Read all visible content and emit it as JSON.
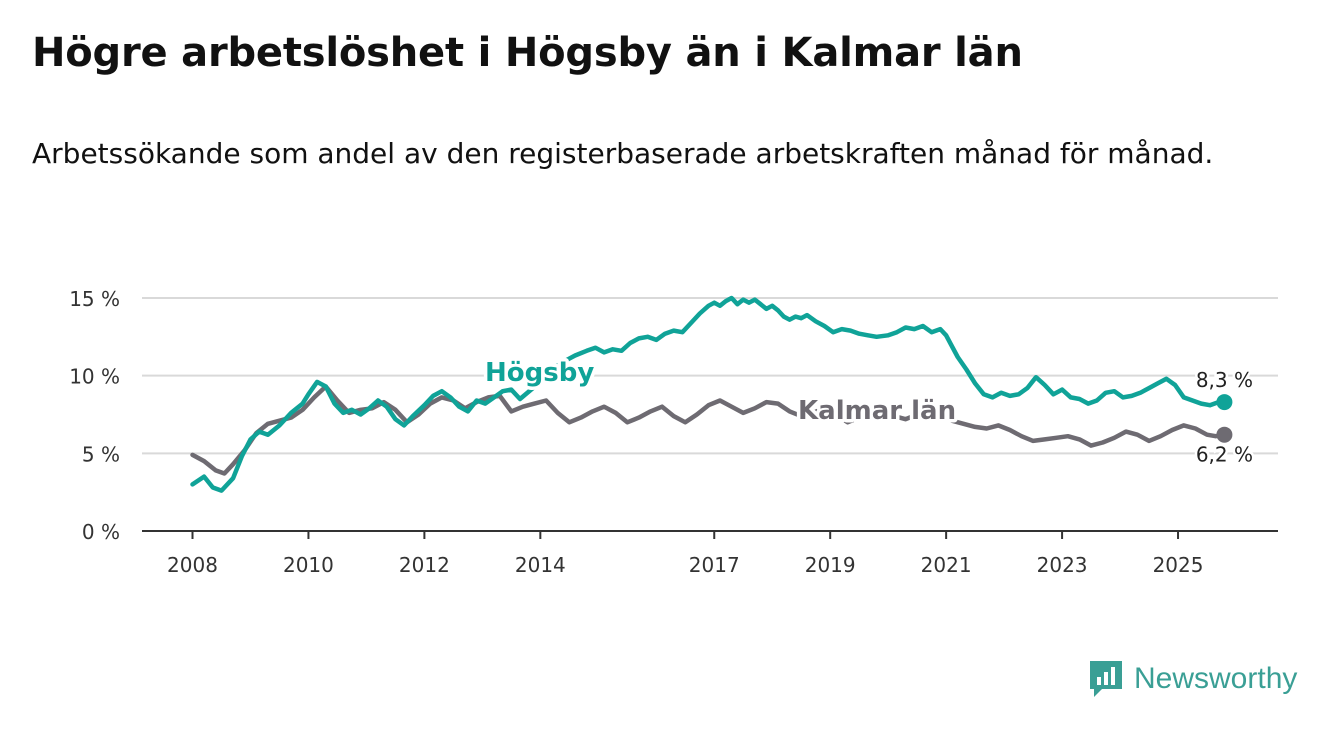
{
  "title": "Högre arbetslöshet i Högsby än i Kalmar län",
  "subtitle": "Arbetssökande som andel av den registerbaserade arbetskraften månad för månad.",
  "brand": {
    "name": "Newsworthy",
    "icon": "bar-chart-logo-icon",
    "color": "#3a9f95"
  },
  "chart_data": {
    "type": "line",
    "title": "Högre arbetslöshet i Högsby än i Kalmar län",
    "xlabel": "",
    "ylabel": "",
    "ylim": [
      0,
      15
    ],
    "xlim": [
      2008,
      2026
    ],
    "grid": true,
    "y_ticks": [
      0,
      5,
      10,
      15
    ],
    "y_tick_labels": [
      "0 %",
      "5 %",
      "10 %",
      "15 %"
    ],
    "x_ticks": [
      2008,
      2010,
      2012,
      2014,
      2017,
      2019,
      2021,
      2023,
      2025
    ],
    "x_tick_labels": [
      "2008",
      "2010",
      "2012",
      "2014",
      "2017",
      "2019",
      "2021",
      "2023",
      "2025"
    ],
    "series": [
      {
        "name": "Högsby",
        "color": "#10a398",
        "end_label": "8,3 %",
        "x": [
          2008,
          2008.2,
          2008.35,
          2008.5,
          2008.7,
          2008.85,
          2009,
          2009.15,
          2009.3,
          2009.5,
          2009.7,
          2009.9,
          2010,
          2010.15,
          2010.3,
          2010.45,
          2010.6,
          2010.75,
          2010.9,
          2011.05,
          2011.2,
          2011.35,
          2011.5,
          2011.65,
          2011.8,
          2012,
          2012.15,
          2012.3,
          2012.45,
          2012.6,
          2012.75,
          2012.9,
          2013.05,
          2013.2,
          2013.35,
          2013.5,
          2013.65,
          2014,
          2014.2,
          2014.4,
          2014.6,
          2014.8,
          2014.95,
          2015.1,
          2015.25,
          2015.4,
          2015.55,
          2015.7,
          2015.85,
          2016,
          2016.15,
          2016.3,
          2016.45,
          2016.6,
          2016.75,
          2016.9,
          2017,
          2017.1,
          2017.2,
          2017.3,
          2017.4,
          2017.5,
          2017.6,
          2017.7,
          2017.8,
          2017.9,
          2018,
          2018.1,
          2018.2,
          2018.3,
          2018.4,
          2018.5,
          2018.6,
          2018.75,
          2018.9,
          2019.05,
          2019.2,
          2019.35,
          2019.5,
          2019.65,
          2019.8,
          2020,
          2020.15,
          2020.3,
          2020.45,
          2020.6,
          2020.75,
          2020.9,
          2021,
          2021.1,
          2021.2,
          2021.35,
          2021.5,
          2021.65,
          2021.8,
          2021.95,
          2022.1,
          2022.25,
          2022.4,
          2022.55,
          2022.7,
          2022.85,
          2023,
          2023.15,
          2023.3,
          2023.45,
          2023.6,
          2023.75,
          2023.9,
          2024.05,
          2024.2,
          2024.35,
          2024.5,
          2024.65,
          2024.8,
          2024.95,
          2025.1,
          2025.25,
          2025.4,
          2025.55,
          2025.7,
          2025.8
        ],
        "values": [
          3.0,
          3.5,
          2.8,
          2.6,
          3.4,
          4.8,
          5.9,
          6.4,
          6.2,
          6.8,
          7.6,
          8.2,
          8.8,
          9.6,
          9.3,
          8.2,
          7.6,
          7.8,
          7.5,
          7.9,
          8.4,
          8.0,
          7.2,
          6.8,
          7.4,
          8.1,
          8.7,
          9.0,
          8.6,
          8.0,
          7.7,
          8.4,
          8.2,
          8.6,
          9.0,
          9.1,
          8.5,
          9.6,
          10.4,
          10.9,
          11.3,
          11.6,
          11.8,
          11.5,
          11.7,
          11.6,
          12.1,
          12.4,
          12.5,
          12.3,
          12.7,
          12.9,
          12.8,
          13.4,
          14.0,
          14.5,
          14.7,
          14.5,
          14.8,
          15.0,
          14.6,
          14.9,
          14.7,
          14.9,
          14.6,
          14.3,
          14.5,
          14.2,
          13.8,
          13.6,
          13.8,
          13.7,
          13.9,
          13.5,
          13.2,
          12.8,
          13.0,
          12.9,
          12.7,
          12.6,
          12.5,
          12.6,
          12.8,
          13.1,
          13.0,
          13.2,
          12.8,
          13.0,
          12.6,
          11.9,
          11.2,
          10.4,
          9.5,
          8.8,
          8.6,
          8.9,
          8.7,
          8.8,
          9.2,
          9.9,
          9.4,
          8.8,
          9.1,
          8.6,
          8.5,
          8.2,
          8.4,
          8.9,
          9.0,
          8.6,
          8.7,
          8.9,
          9.2,
          9.5,
          9.8,
          9.4,
          8.6,
          8.4,
          8.2,
          8.1,
          8.3,
          8.3
        ]
      },
      {
        "name": "Kalmar län",
        "color": "#6e6b72",
        "end_label": "6,2 %",
        "x": [
          2008,
          2008.2,
          2008.4,
          2008.55,
          2008.7,
          2008.9,
          2009.1,
          2009.3,
          2009.5,
          2009.7,
          2009.9,
          2010.1,
          2010.3,
          2010.5,
          2010.7,
          2010.9,
          2011.1,
          2011.3,
          2011.5,
          2011.7,
          2011.9,
          2012.1,
          2012.3,
          2012.5,
          2012.7,
          2012.9,
          2013.1,
          2013.3,
          2013.5,
          2013.7,
          2013.9,
          2014.1,
          2014.3,
          2014.5,
          2014.7,
          2014.9,
          2015.1,
          2015.3,
          2015.5,
          2015.7,
          2015.9,
          2016.1,
          2016.3,
          2016.5,
          2016.7,
          2016.9,
          2017.1,
          2017.3,
          2017.5,
          2017.7,
          2017.9,
          2018.1,
          2018.3,
          2018.5,
          2018.7,
          2018.9,
          2019.1,
          2019.3,
          2019.5,
          2019.7,
          2019.9,
          2020.1,
          2020.3,
          2020.5,
          2020.7,
          2020.9,
          2021.1,
          2021.3,
          2021.5,
          2021.7,
          2021.9,
          2022.1,
          2022.3,
          2022.5,
          2022.7,
          2022.9,
          2023.1,
          2023.3,
          2023.5,
          2023.7,
          2023.9,
          2024.1,
          2024.3,
          2024.5,
          2024.7,
          2024.9,
          2025.1,
          2025.3,
          2025.5,
          2025.65,
          2025.8
        ],
        "values": [
          4.9,
          4.5,
          3.9,
          3.7,
          4.3,
          5.2,
          6.3,
          6.9,
          7.1,
          7.3,
          7.8,
          8.6,
          9.3,
          8.4,
          7.6,
          7.8,
          7.9,
          8.3,
          7.8,
          7.0,
          7.5,
          8.2,
          8.6,
          8.4,
          7.9,
          8.3,
          8.6,
          8.7,
          7.7,
          8.0,
          8.2,
          8.4,
          7.6,
          7.0,
          7.3,
          7.7,
          8.0,
          7.6,
          7.0,
          7.3,
          7.7,
          8.0,
          7.4,
          7.0,
          7.5,
          8.1,
          8.4,
          8.0,
          7.6,
          7.9,
          8.3,
          8.2,
          7.7,
          7.4,
          7.6,
          7.9,
          7.5,
          7.0,
          7.3,
          7.6,
          7.8,
          7.4,
          7.2,
          7.5,
          7.8,
          7.6,
          7.1,
          6.9,
          6.7,
          6.6,
          6.8,
          6.5,
          6.1,
          5.8,
          5.9,
          6.0,
          6.1,
          5.9,
          5.5,
          5.7,
          6.0,
          6.4,
          6.2,
          5.8,
          6.1,
          6.5,
          6.8,
          6.6,
          6.2,
          6.1,
          6.2
        ]
      }
    ]
  }
}
